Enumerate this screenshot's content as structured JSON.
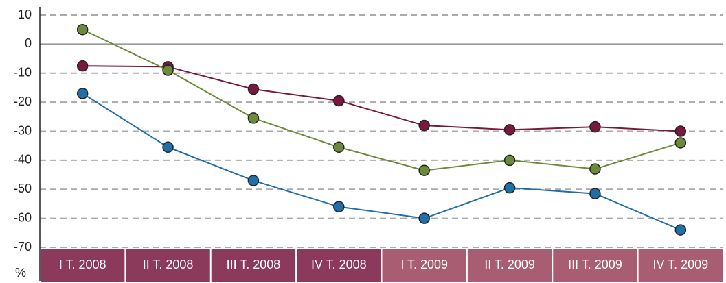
{
  "chart_data": {
    "type": "line",
    "y_label": "%",
    "categories": [
      "I T. 2008",
      "II T. 2008",
      "III T. 2008",
      "IV T. 2008",
      "I T. 2009",
      "II T. 2009",
      "III T. 2009",
      "IV T. 2009"
    ],
    "category_colors": [
      "#8c3a5b",
      "#8c3a5b",
      "#8c3a5b",
      "#8c3a5b",
      "#a95d72",
      "#a95d72",
      "#a95d72",
      "#a95d72"
    ],
    "series": [
      {
        "color": "#7b1840",
        "values": [
          -7.5,
          -7.8,
          -15.5,
          -19.5,
          -28,
          -29.5,
          -28.5,
          -30
        ]
      },
      {
        "color": "#6b8a3a",
        "values": [
          5,
          -9,
          -25.5,
          -35.5,
          -43.5,
          -40,
          -43,
          -34
        ]
      },
      {
        "color": "#1f6fa8",
        "values": [
          -17,
          -35.5,
          -47,
          -56,
          -60,
          -49.5,
          -51.5,
          -64
        ]
      }
    ],
    "ylim": [
      -70,
      10
    ],
    "yticks": [
      10,
      0,
      -10,
      -20,
      -30,
      -40,
      -50,
      -60,
      -70
    ],
    "grid": true
  }
}
